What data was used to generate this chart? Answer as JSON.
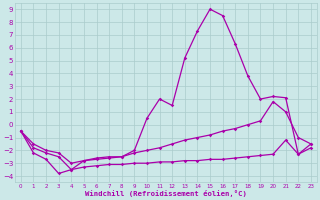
{
  "xlabel": "Windchill (Refroidissement éolien,°C)",
  "background_color": "#cce8e8",
  "grid_color": "#aacccc",
  "line_color": "#aa00aa",
  "xlim": [
    -0.5,
    23.5
  ],
  "ylim": [
    -4.5,
    9.5
  ],
  "xticks": [
    0,
    1,
    2,
    3,
    4,
    5,
    6,
    7,
    8,
    9,
    10,
    11,
    12,
    13,
    14,
    15,
    16,
    17,
    18,
    19,
    20,
    21,
    22,
    23
  ],
  "yticks": [
    -4,
    -3,
    -2,
    -1,
    0,
    1,
    2,
    3,
    4,
    5,
    6,
    7,
    8,
    9
  ],
  "curve_peak_x": [
    0,
    1,
    2,
    3,
    4,
    5,
    6,
    7,
    8,
    9,
    10,
    11,
    12,
    13,
    14,
    15,
    16,
    17,
    18,
    19,
    20,
    21,
    22,
    23
  ],
  "curve_peak_y": [
    -0.5,
    -1.8,
    -2.2,
    -2.5,
    -3.5,
    -2.8,
    -2.7,
    -2.6,
    -2.5,
    -2.0,
    0.5,
    2.0,
    1.5,
    5.2,
    7.3,
    9.0,
    8.5,
    6.3,
    3.8,
    2.0,
    2.2,
    2.1,
    -2.3,
    -1.5
  ],
  "curve_mid_x": [
    0,
    1,
    2,
    3,
    4,
    5,
    6,
    7,
    8,
    9,
    10,
    11,
    12,
    13,
    14,
    15,
    16,
    17,
    18,
    19,
    20,
    21,
    22,
    23
  ],
  "curve_mid_y": [
    -0.5,
    -1.5,
    -2.0,
    -2.2,
    -3.0,
    -2.8,
    -2.6,
    -2.5,
    -2.5,
    -2.2,
    -2.0,
    -1.8,
    -1.5,
    -1.2,
    -1.0,
    -0.8,
    -0.5,
    -0.3,
    0.0,
    0.3,
    1.8,
    1.0,
    -1.0,
    -1.5
  ],
  "curve_flat_x": [
    0,
    1,
    2,
    3,
    4,
    5,
    6,
    7,
    8,
    9,
    10,
    11,
    12,
    13,
    14,
    15,
    16,
    17,
    18,
    19,
    20,
    21,
    22,
    23
  ],
  "curve_flat_y": [
    -0.5,
    -2.2,
    -2.7,
    -3.8,
    -3.5,
    -3.3,
    -3.2,
    -3.1,
    -3.1,
    -3.0,
    -3.0,
    -2.9,
    -2.9,
    -2.8,
    -2.8,
    -2.7,
    -2.7,
    -2.6,
    -2.5,
    -2.4,
    -2.3,
    -1.2,
    -2.3,
    -1.8
  ]
}
